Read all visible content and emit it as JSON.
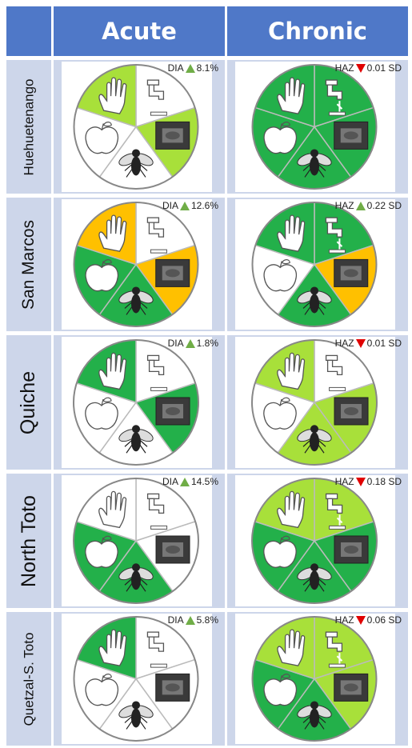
{
  "header": {
    "acute": "Acute",
    "chronic": "Chronic"
  },
  "colors": {
    "dark_green": "#23b04a",
    "light_green": "#a8e03a",
    "orange": "#ffc000",
    "white": "#ffffff",
    "header_blue": "#4f78c8",
    "cell_bg": "#cdd6ea",
    "up": "#70ad47",
    "down": "#e00000"
  },
  "regions": [
    {
      "name": "Huehuetenango",
      "acute": {
        "label": "DIA",
        "dir": "up",
        "value": "8.1%",
        "segments": [
          "white",
          "light_green",
          "dark_gray",
          "white",
          "light_green"
        ]
      },
      "chronic": {
        "label": "HAZ",
        "dir": "down",
        "value": "0.01 SD",
        "segments": [
          "dark_green",
          "dark_green",
          "dark_green",
          "dark_green",
          "dark_green"
        ]
      }
    },
    {
      "name": "San Marcos",
      "acute": {
        "label": "DIA",
        "dir": "up",
        "value": "12.6%",
        "segments": [
          "white",
          "orange",
          "dark_green",
          "dark_green",
          "orange"
        ]
      },
      "chronic": {
        "label": "HAZ",
        "dir": "up",
        "value": "0.22 SD",
        "segments": [
          "dark_green",
          "orange",
          "dark_green",
          "white",
          "dark_green"
        ]
      }
    },
    {
      "name": "Quiche",
      "acute": {
        "label": "DIA",
        "dir": "up",
        "value": "1.8%",
        "segments": [
          "white",
          "dark_green",
          "white",
          "white",
          "dark_green"
        ]
      },
      "chronic": {
        "label": "HAZ",
        "dir": "down",
        "value": "0.01 SD",
        "segments": [
          "white",
          "light_green",
          "light_green",
          "white",
          "light_green"
        ]
      }
    },
    {
      "name": "North Toto",
      "acute": {
        "label": "DIA",
        "dir": "up",
        "value": "14.5%",
        "segments": [
          "white",
          "white",
          "dark_green",
          "dark_green",
          "white"
        ]
      },
      "chronic": {
        "label": "HAZ",
        "dir": "down",
        "value": "0.18 SD",
        "segments": [
          "light_green",
          "dark_green",
          "dark_green",
          "dark_green",
          "light_green"
        ]
      }
    },
    {
      "name": "Quetzal-S. Toto",
      "acute": {
        "label": "DIA",
        "dir": "up",
        "value": "5.8%",
        "segments": [
          "white",
          "white",
          "white",
          "white",
          "dark_green"
        ]
      },
      "chronic": {
        "label": "HAZ",
        "dir": "down",
        "value": "0.06 SD",
        "segments": [
          "light_green",
          "light_green",
          "dark_green",
          "dark_green",
          "light_green"
        ]
      }
    }
  ],
  "segment_icons": [
    "hand-icon",
    "faucet-icon",
    "latrine-photo-icon",
    "fly-icon",
    "apple-icon"
  ]
}
